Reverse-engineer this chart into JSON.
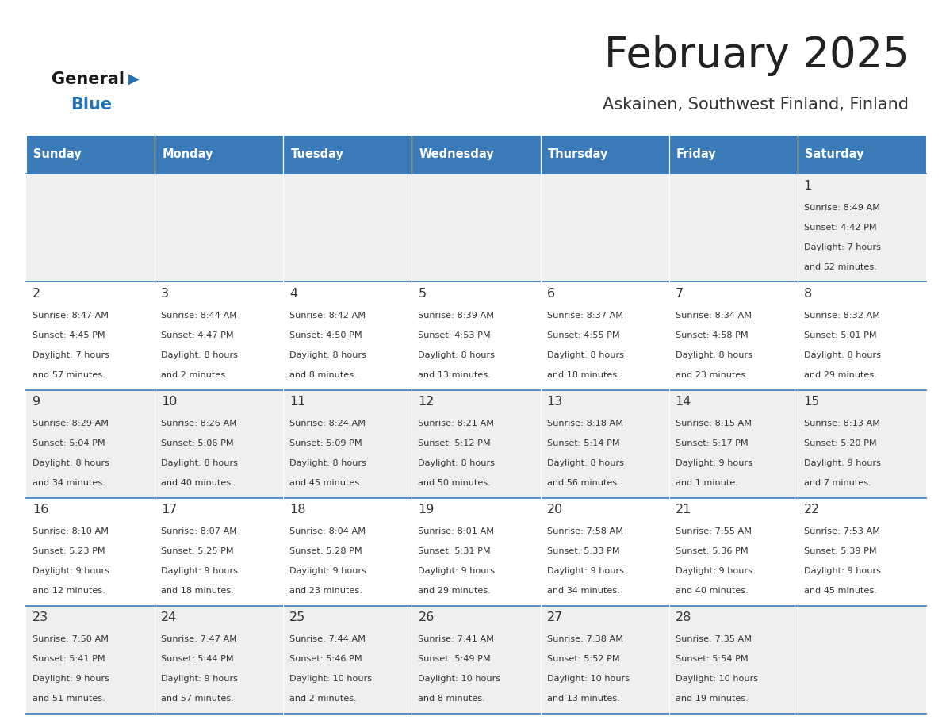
{
  "title": "February 2025",
  "subtitle": "Askainen, Southwest Finland, Finland",
  "header_color": "#3a7ab8",
  "header_text_color": "#ffffff",
  "cell_bg_even": "#efefef",
  "cell_bg_odd": "#ffffff",
  "day_headers": [
    "Sunday",
    "Monday",
    "Tuesday",
    "Wednesday",
    "Thursday",
    "Friday",
    "Saturday"
  ],
  "title_color": "#222222",
  "subtitle_color": "#333333",
  "line_color": "#3a7ab8",
  "text_color": "#333333",
  "logo_black": "#1a1a1a",
  "logo_blue": "#2272b5",
  "days": [
    {
      "day": 1,
      "col": 6,
      "row": 0,
      "sunrise": "8:49 AM",
      "sunset": "4:42 PM",
      "daylight": "7 hours and 52 minutes"
    },
    {
      "day": 2,
      "col": 0,
      "row": 1,
      "sunrise": "8:47 AM",
      "sunset": "4:45 PM",
      "daylight": "7 hours and 57 minutes"
    },
    {
      "day": 3,
      "col": 1,
      "row": 1,
      "sunrise": "8:44 AM",
      "sunset": "4:47 PM",
      "daylight": "8 hours and 2 minutes"
    },
    {
      "day": 4,
      "col": 2,
      "row": 1,
      "sunrise": "8:42 AM",
      "sunset": "4:50 PM",
      "daylight": "8 hours and 8 minutes"
    },
    {
      "day": 5,
      "col": 3,
      "row": 1,
      "sunrise": "8:39 AM",
      "sunset": "4:53 PM",
      "daylight": "8 hours and 13 minutes"
    },
    {
      "day": 6,
      "col": 4,
      "row": 1,
      "sunrise": "8:37 AM",
      "sunset": "4:55 PM",
      "daylight": "8 hours and 18 minutes"
    },
    {
      "day": 7,
      "col": 5,
      "row": 1,
      "sunrise": "8:34 AM",
      "sunset": "4:58 PM",
      "daylight": "8 hours and 23 minutes"
    },
    {
      "day": 8,
      "col": 6,
      "row": 1,
      "sunrise": "8:32 AM",
      "sunset": "5:01 PM",
      "daylight": "8 hours and 29 minutes"
    },
    {
      "day": 9,
      "col": 0,
      "row": 2,
      "sunrise": "8:29 AM",
      "sunset": "5:04 PM",
      "daylight": "8 hours and 34 minutes"
    },
    {
      "day": 10,
      "col": 1,
      "row": 2,
      "sunrise": "8:26 AM",
      "sunset": "5:06 PM",
      "daylight": "8 hours and 40 minutes"
    },
    {
      "day": 11,
      "col": 2,
      "row": 2,
      "sunrise": "8:24 AM",
      "sunset": "5:09 PM",
      "daylight": "8 hours and 45 minutes"
    },
    {
      "day": 12,
      "col": 3,
      "row": 2,
      "sunrise": "8:21 AM",
      "sunset": "5:12 PM",
      "daylight": "8 hours and 50 minutes"
    },
    {
      "day": 13,
      "col": 4,
      "row": 2,
      "sunrise": "8:18 AM",
      "sunset": "5:14 PM",
      "daylight": "8 hours and 56 minutes"
    },
    {
      "day": 14,
      "col": 5,
      "row": 2,
      "sunrise": "8:15 AM",
      "sunset": "5:17 PM",
      "daylight": "9 hours and 1 minute"
    },
    {
      "day": 15,
      "col": 6,
      "row": 2,
      "sunrise": "8:13 AM",
      "sunset": "5:20 PM",
      "daylight": "9 hours and 7 minutes"
    },
    {
      "day": 16,
      "col": 0,
      "row": 3,
      "sunrise": "8:10 AM",
      "sunset": "5:23 PM",
      "daylight": "9 hours and 12 minutes"
    },
    {
      "day": 17,
      "col": 1,
      "row": 3,
      "sunrise": "8:07 AM",
      "sunset": "5:25 PM",
      "daylight": "9 hours and 18 minutes"
    },
    {
      "day": 18,
      "col": 2,
      "row": 3,
      "sunrise": "8:04 AM",
      "sunset": "5:28 PM",
      "daylight": "9 hours and 23 minutes"
    },
    {
      "day": 19,
      "col": 3,
      "row": 3,
      "sunrise": "8:01 AM",
      "sunset": "5:31 PM",
      "daylight": "9 hours and 29 minutes"
    },
    {
      "day": 20,
      "col": 4,
      "row": 3,
      "sunrise": "7:58 AM",
      "sunset": "5:33 PM",
      "daylight": "9 hours and 34 minutes"
    },
    {
      "day": 21,
      "col": 5,
      "row": 3,
      "sunrise": "7:55 AM",
      "sunset": "5:36 PM",
      "daylight": "9 hours and 40 minutes"
    },
    {
      "day": 22,
      "col": 6,
      "row": 3,
      "sunrise": "7:53 AM",
      "sunset": "5:39 PM",
      "daylight": "9 hours and 45 minutes"
    },
    {
      "day": 23,
      "col": 0,
      "row": 4,
      "sunrise": "7:50 AM",
      "sunset": "5:41 PM",
      "daylight": "9 hours and 51 minutes"
    },
    {
      "day": 24,
      "col": 1,
      "row": 4,
      "sunrise": "7:47 AM",
      "sunset": "5:44 PM",
      "daylight": "9 hours and 57 minutes"
    },
    {
      "day": 25,
      "col": 2,
      "row": 4,
      "sunrise": "7:44 AM",
      "sunset": "5:46 PM",
      "daylight": "10 hours and 2 minutes"
    },
    {
      "day": 26,
      "col": 3,
      "row": 4,
      "sunrise": "7:41 AM",
      "sunset": "5:49 PM",
      "daylight": "10 hours and 8 minutes"
    },
    {
      "day": 27,
      "col": 4,
      "row": 4,
      "sunrise": "7:38 AM",
      "sunset": "5:52 PM",
      "daylight": "10 hours and 13 minutes"
    },
    {
      "day": 28,
      "col": 5,
      "row": 4,
      "sunrise": "7:35 AM",
      "sunset": "5:54 PM",
      "daylight": "10 hours and 19 minutes"
    }
  ]
}
